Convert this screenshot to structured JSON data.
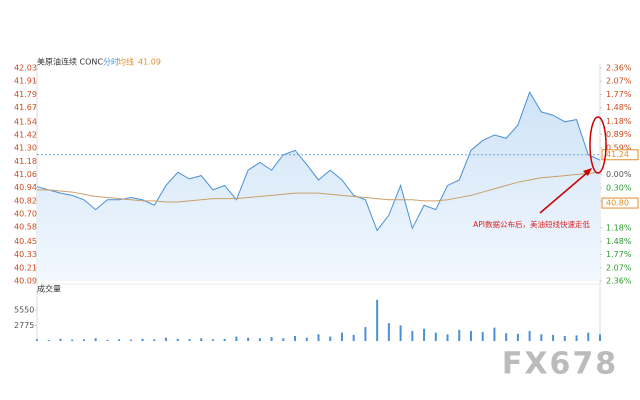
{
  "chart_data": {
    "type": "line",
    "title": "美原油连续 CONC",
    "legend_items": [
      {
        "label": "分时",
        "color": "#4a90d9"
      },
      {
        "label": "均线",
        "color": "#e0902a"
      },
      {
        "label": "41.09",
        "color": "#e0902a"
      }
    ],
    "series": [
      {
        "name": "分时",
        "color": "#4a90d9",
        "values": [
          40.95,
          40.92,
          40.89,
          40.87,
          40.83,
          40.74,
          40.83,
          40.83,
          40.85,
          40.83,
          40.78,
          40.96,
          41.08,
          41.02,
          41.05,
          40.92,
          40.96,
          40.83,
          41.1,
          41.17,
          41.1,
          41.24,
          41.28,
          41.15,
          41.01,
          41.1,
          41.01,
          40.87,
          40.83,
          40.55,
          40.69,
          40.96,
          40.57,
          40.78,
          40.74,
          40.96,
          41.01,
          41.28,
          41.37,
          41.42,
          41.39,
          41.51,
          41.81,
          41.63,
          41.6,
          41.54,
          41.56,
          41.24,
          41.19
        ]
      },
      {
        "name": "均线",
        "color": "#c9a06a",
        "values": [
          40.92,
          40.92,
          40.91,
          40.9,
          40.88,
          40.86,
          40.85,
          40.84,
          40.83,
          40.82,
          40.82,
          40.81,
          40.81,
          40.82,
          40.83,
          40.84,
          40.84,
          40.84,
          40.85,
          40.86,
          40.87,
          40.88,
          40.89,
          40.89,
          40.89,
          40.88,
          40.87,
          40.86,
          40.85,
          40.84,
          40.83,
          40.83,
          40.83,
          40.82,
          40.82,
          40.83,
          40.85,
          40.87,
          40.9,
          40.93,
          40.96,
          40.99,
          41.01,
          41.03,
          41.04,
          41.05,
          41.06,
          41.07,
          41.08
        ]
      }
    ],
    "ylim": [
      40.09,
      42.03
    ],
    "yticks": [
      42.03,
      41.91,
      41.79,
      41.67,
      41.54,
      41.42,
      {
        "value": 41.3,
        "label": "41.30"
      },
      41.18,
      41.06,
      40.94,
      40.82,
      {
        "value": 40.7,
        "label": "40.70"
      },
      40.58,
      40.45,
      40.33,
      40.21,
      40.09
    ],
    "y2lim": [
      -2.36,
      2.36
    ],
    "y2ticks": [
      {
        "value": 2.36,
        "label": "2.36%"
      },
      {
        "value": 2.07,
        "label": "2.07%"
      },
      {
        "value": 1.77,
        "label": "1.77%"
      },
      {
        "value": 1.48,
        "label": "1.48%"
      },
      {
        "value": 1.18,
        "label": "1.18%"
      },
      {
        "value": 0.89,
        "label": "0.89%"
      },
      {
        "value": 0.59,
        "label": "0.59%"
      },
      {
        "value": 0,
        "label": "0.00%"
      },
      {
        "value": -0.3,
        "label": "0.30%"
      },
      {
        "value": -0.59,
        "label": "0.59%"
      },
      {
        "value": -1.18,
        "label": "1.18%"
      },
      {
        "value": -1.48,
        "label": "1.48%"
      },
      {
        "value": -1.77,
        "label": "1.77%"
      },
      {
        "value": -2.07,
        "label": "2.07%"
      },
      {
        "value": -2.36,
        "label": "2.36%"
      }
    ],
    "price_markers": [
      {
        "value": 41.24,
        "label": "41.24"
      },
      {
        "value": 40.8,
        "label": "40.80"
      }
    ],
    "annotation": "API数据公布后，美油短线快速走低",
    "volume": {
      "label": "成交量",
      "color": "#4a90d9",
      "ylim": [
        0,
        8800
      ],
      "yticks": [
        5550,
        2775
      ],
      "values": [
        300,
        200,
        400,
        250,
        300,
        500,
        200,
        300,
        250,
        400,
        300,
        600,
        400,
        350,
        500,
        300,
        400,
        800,
        600,
        500,
        700,
        500,
        900,
        600,
        1200,
        800,
        1500,
        1100,
        2500,
        7400,
        3200,
        2800,
        1800,
        2200,
        1500,
        1200,
        2000,
        1800,
        1600,
        2400,
        1400,
        1300,
        1800,
        1200,
        1100,
        900,
        1000,
        1500,
        1200
      ]
    },
    "watermark": "FX678"
  }
}
